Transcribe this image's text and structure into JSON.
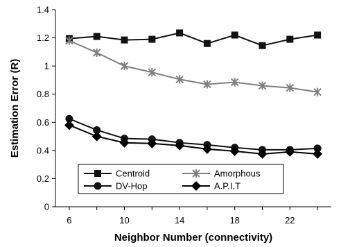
{
  "chart_data": {
    "type": "line",
    "title": "",
    "xlabel": "Neighbor Number (connectivity)",
    "ylabel": "Estimation Error  (R)",
    "x": [
      6,
      8,
      10,
      12,
      14,
      16,
      18,
      20,
      22,
      24
    ],
    "xticks": [
      "6",
      "10",
      "14",
      "18",
      "22"
    ],
    "xlim": [
      5,
      25
    ],
    "ylim": [
      0,
      1.4
    ],
    "yticks": [
      "0",
      "0.2",
      "0.4",
      "0.6",
      "0.8",
      "1",
      "1.2",
      "1.4"
    ],
    "grid": false,
    "legend_position": "bottom-left",
    "series": [
      {
        "name": "Centroid",
        "marker": "square",
        "color": "#111111",
        "values": [
          1.195,
          1.21,
          1.185,
          1.19,
          1.235,
          1.16,
          1.22,
          1.145,
          1.19,
          1.22
        ]
      },
      {
        "name": "Amorphous",
        "marker": "asterisk",
        "color": "#7f7f7f",
        "values": [
          1.18,
          1.095,
          1.0,
          0.955,
          0.905,
          0.87,
          0.885,
          0.86,
          0.845,
          0.815
        ]
      },
      {
        "name": "DV-Hop",
        "marker": "circle",
        "color": "#111111",
        "values": [
          0.625,
          0.545,
          0.485,
          0.48,
          0.455,
          0.44,
          0.42,
          0.405,
          0.405,
          0.415
        ]
      },
      {
        "name": "A.P.I.T",
        "marker": "diamond",
        "color": "#000000",
        "values": [
          0.58,
          0.5,
          0.455,
          0.45,
          0.435,
          0.41,
          0.395,
          0.375,
          0.39,
          0.375
        ]
      }
    ]
  }
}
